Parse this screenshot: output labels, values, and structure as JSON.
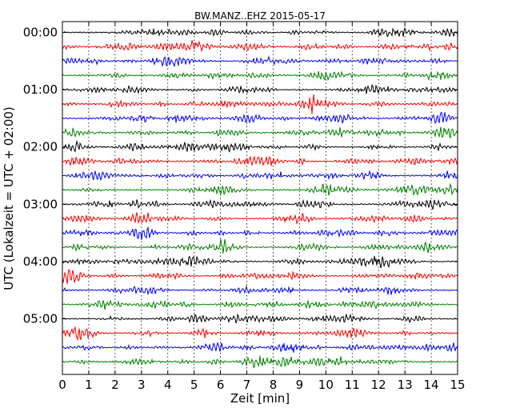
{
  "chart_data": {
    "type": "line",
    "title": "BW.MANZ..EHZ 2015-05-17",
    "xlabel": "Zeit  [min]",
    "ylabel": "UTC (Lokalzeit = UTC + 02:00)",
    "xlim": [
      0,
      15
    ],
    "x_ticks": [
      "0",
      "1",
      "2",
      "3",
      "4",
      "5",
      "6",
      "7",
      "8",
      "9",
      "10",
      "11",
      "12",
      "13",
      "14",
      "15"
    ],
    "y_ticks": [
      {
        "label": "00:00",
        "row": 0
      },
      {
        "label": "01:00",
        "row": 4
      },
      {
        "label": "02:00",
        "row": 8
      },
      {
        "label": "03:00",
        "row": 12
      },
      {
        "label": "04:00",
        "row": 16
      },
      {
        "label": "05:00",
        "row": 20
      }
    ],
    "grid": true,
    "series_row_count": 24,
    "trace_colors": [
      "#000000",
      "#ff0000",
      "#0000ff",
      "#008000"
    ]
  }
}
